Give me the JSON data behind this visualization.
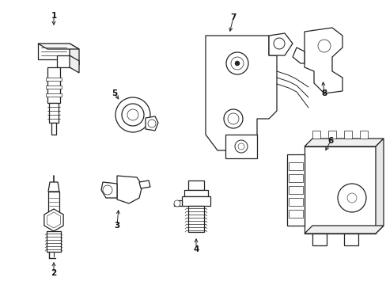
{
  "bg_color": "#ffffff",
  "line_color": "#222222",
  "label_color": "#111111",
  "figsize": [
    4.89,
    3.6
  ],
  "dpi": 100
}
